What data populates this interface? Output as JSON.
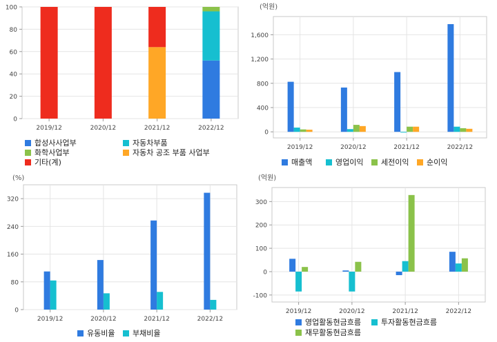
{
  "chart_data": [
    {
      "id": "segments",
      "type": "bar",
      "stacked": true,
      "unit": "",
      "categories": [
        "2019/12",
        "2020/12",
        "2021/12",
        "2022/12"
      ],
      "ylim": [
        0,
        100
      ],
      "yticks": [
        0,
        20,
        40,
        60,
        80,
        100
      ],
      "ytick_labels": [
        "0",
        "20",
        "40",
        "60",
        "80",
        "100"
      ],
      "grid": true,
      "legend_position": "bottom",
      "series": [
        {
          "name": "합성사사업부",
          "color": "#2f7be0",
          "values": [
            0,
            0,
            0,
            52
          ]
        },
        {
          "name": "자동차부품",
          "color": "#16bfd0",
          "values": [
            0,
            0,
            0,
            44
          ]
        },
        {
          "name": "화학사업부",
          "color": "#8bc24a",
          "values": [
            0,
            0,
            0,
            4
          ]
        },
        {
          "name": "자동차 공조 부품 사업부",
          "color": "#ffa726",
          "values": [
            0,
            0,
            64,
            0
          ]
        },
        {
          "name": "기타(계)",
          "color": "#ee2c1e",
          "values": [
            100,
            100,
            36,
            0
          ]
        }
      ]
    },
    {
      "id": "income",
      "type": "bar",
      "unit": "(억원)",
      "categories": [
        "2019/12",
        "2020/12",
        "2021/12",
        "2022/12"
      ],
      "ylim": [
        -100,
        1900
      ],
      "yticks": [
        0,
        400,
        800,
        1200,
        1600
      ],
      "ytick_labels": [
        "0",
        "400",
        "800",
        "1,200",
        "1,600"
      ],
      "grid": true,
      "legend_position": "bottom",
      "series": [
        {
          "name": "매출액",
          "color": "#2f7be0",
          "values": [
            825,
            730,
            985,
            1775
          ]
        },
        {
          "name": "영업이익",
          "color": "#16bfd0",
          "values": [
            70,
            45,
            -5,
            85
          ]
        },
        {
          "name": "세전이익",
          "color": "#8bc24a",
          "values": [
            40,
            115,
            85,
            60
          ]
        },
        {
          "name": "순이익",
          "color": "#ffa726",
          "values": [
            35,
            95,
            85,
            50
          ]
        }
      ]
    },
    {
      "id": "ratios",
      "type": "bar",
      "unit": "(%)",
      "categories": [
        "2019/12",
        "2020/12",
        "2021/12",
        "2022/12"
      ],
      "ylim": [
        0,
        360
      ],
      "yticks": [
        0,
        80,
        160,
        240,
        320
      ],
      "ytick_labels": [
        "0",
        "80",
        "160",
        "240",
        "320"
      ],
      "grid": true,
      "legend_position": "bottom",
      "series": [
        {
          "name": "유동비율",
          "color": "#2f7be0",
          "values": [
            110,
            143,
            257,
            337
          ]
        },
        {
          "name": "부채비율",
          "color": "#16bfd0",
          "values": [
            84,
            47,
            51,
            28
          ]
        }
      ]
    },
    {
      "id": "cashflow",
      "type": "bar",
      "unit": "(억원)",
      "categories": [
        "2019/12",
        "2020/12",
        "2021/12",
        "2022/12"
      ],
      "ylim": [
        -130,
        360
      ],
      "yticks": [
        -100,
        0,
        100,
        200,
        300
      ],
      "ytick_labels": [
        "-100",
        "0",
        "100",
        "200",
        "300"
      ],
      "grid": true,
      "legend_position": "bottom",
      "series": [
        {
          "name": "영업활동현금흐름",
          "color": "#2f7be0",
          "values": [
            55,
            5,
            -15,
            85
          ]
        },
        {
          "name": "투자활동현금흐름",
          "color": "#16bfd0",
          "values": [
            -85,
            -85,
            45,
            35
          ]
        },
        {
          "name": "재무활동현금흐름",
          "color": "#8bc24a",
          "values": [
            20,
            42,
            328,
            57
          ]
        }
      ]
    }
  ]
}
